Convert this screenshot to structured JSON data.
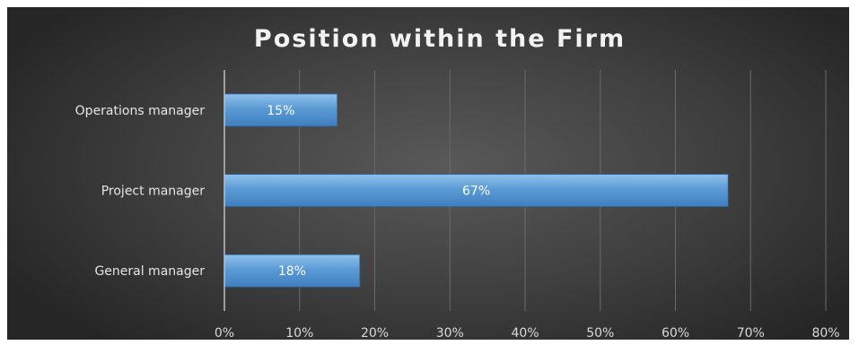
{
  "chart_data": {
    "type": "bar",
    "orientation": "horizontal",
    "title": "Position within the Firm",
    "xlabel": "",
    "ylabel": "",
    "categories": [
      "Operations manager",
      "Project manager",
      "General manager"
    ],
    "values": [
      15,
      67,
      18
    ],
    "data_labels": [
      "15%",
      "67%",
      "18%"
    ],
    "xlim": [
      0,
      80
    ],
    "x_ticks": [
      0,
      10,
      20,
      30,
      40,
      50,
      60,
      70,
      80
    ],
    "x_tick_labels": [
      "0%",
      "10%",
      "20%",
      "30%",
      "40%",
      "50%",
      "60%",
      "70%",
      "80%"
    ],
    "grid": true,
    "legend": "none",
    "bar_color": "#5b9bd5",
    "background_color": "#404040"
  }
}
